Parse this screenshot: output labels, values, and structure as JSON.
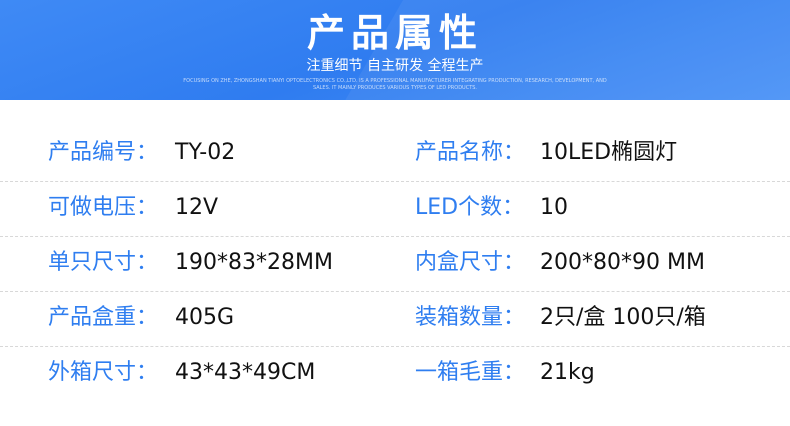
{
  "header": {
    "title": "产品属性",
    "subtitle": "注重细节 自主研发 全程生产",
    "fine_print": "FOCUSING ON ZHE, ZHONGSHAN TIANYI OPTOELECTRONICS CO.,LTD. IS A PROFESSIONAL MANUFACTURER INTEGRATING PRODUCTION, RESEARCH, DEVELOPMENT, AND SALES. IT MAINLY PRODUCES VARIOUS TYPES OF LED PRODUCTS."
  },
  "colors": {
    "header_blue": "#2f7cf0",
    "label_blue": "#2f7ef0"
  },
  "rows": [
    {
      "l_label": "产品编号：",
      "l_value": "TY-02",
      "r_label": "产品名称：",
      "r_value": "10LED椭圆灯"
    },
    {
      "l_label": "可做电压：",
      "l_value": "12V",
      "r_label": "LED个数：",
      "r_value": "10"
    },
    {
      "l_label": "单只尺寸：",
      "l_value": "190*83*28MM",
      "r_label": "内盒尺寸：",
      "r_value": "200*80*90 MM"
    },
    {
      "l_label": "产品盒重：",
      "l_value": "405G",
      "r_label": "装箱数量：",
      "r_value": "2只/盒 100只/箱"
    },
    {
      "l_label": "外箱尺寸：",
      "l_value": "43*43*49CM",
      "r_label": "一箱毛重：",
      "r_value": "21kg"
    }
  ]
}
